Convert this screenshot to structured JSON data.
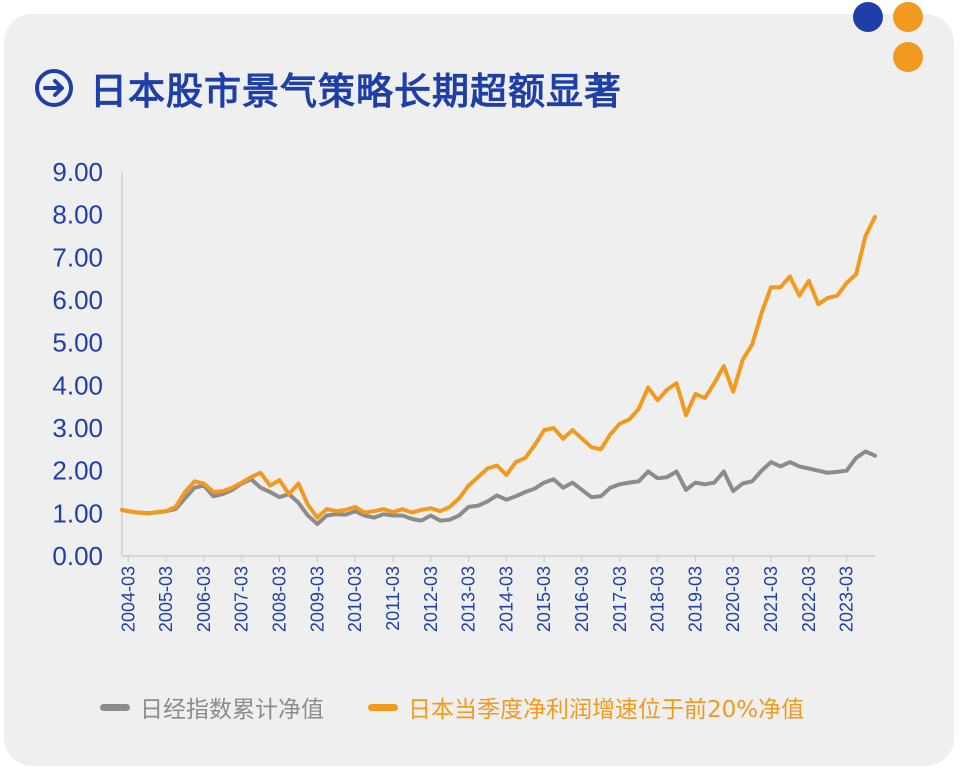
{
  "title": "日本股市景气策略长期超额显著",
  "icons": {
    "title_icon": "arrow-right-circle-icon"
  },
  "colors": {
    "accent_blue": "#1f3fa8",
    "dot_blue": "#1f3fa8",
    "dot_orange": "#f29a1f",
    "series_gray": "#8c8c8c",
    "series_orange": "#f29a1f"
  },
  "chart_data": {
    "type": "line",
    "title": "日本股市景气策略长期超额显著",
    "xlabel": "",
    "ylabel": "",
    "ylim": [
      0,
      9
    ],
    "yticks": [
      "0.00",
      "1.00",
      "2.00",
      "3.00",
      "4.00",
      "5.00",
      "6.00",
      "7.00",
      "8.00",
      "9.00"
    ],
    "xticks": [
      "2004-03",
      "2005-03",
      "2006-03",
      "2007-03",
      "2008-03",
      "2009-03",
      "2010-03",
      "2011-03",
      "2012-03",
      "2013-03",
      "2014-03",
      "2015-03",
      "2016-03",
      "2017-03",
      "2018-03",
      "2019-03",
      "2020-03",
      "2021-03",
      "2022-03",
      "2023-03"
    ],
    "grid": false,
    "legend_position": "bottom",
    "series": [
      {
        "name": "日经指数累计净值",
        "color": "#8c8c8c",
        "points": [
          [
            "2004-01",
            1.08
          ],
          [
            "2004-03",
            1.05
          ],
          [
            "2004-06",
            1.02
          ],
          [
            "2004-09",
            1.0
          ],
          [
            "2004-12",
            1.02
          ],
          [
            "2005-03",
            1.05
          ],
          [
            "2005-06",
            1.1
          ],
          [
            "2005-09",
            1.35
          ],
          [
            "2005-12",
            1.6
          ],
          [
            "2006-03",
            1.65
          ],
          [
            "2006-06",
            1.4
          ],
          [
            "2006-09",
            1.45
          ],
          [
            "2006-12",
            1.55
          ],
          [
            "2007-03",
            1.7
          ],
          [
            "2007-06",
            1.8
          ],
          [
            "2007-09",
            1.6
          ],
          [
            "2007-12",
            1.5
          ],
          [
            "2008-03",
            1.38
          ],
          [
            "2008-06",
            1.45
          ],
          [
            "2008-09",
            1.25
          ],
          [
            "2008-12",
            0.95
          ],
          [
            "2009-03",
            0.75
          ],
          [
            "2009-06",
            0.95
          ],
          [
            "2009-09",
            0.98
          ],
          [
            "2009-12",
            0.97
          ],
          [
            "2010-03",
            1.05
          ],
          [
            "2010-06",
            0.95
          ],
          [
            "2010-09",
            0.9
          ],
          [
            "2010-12",
            0.98
          ],
          [
            "2011-03",
            0.95
          ],
          [
            "2011-06",
            0.95
          ],
          [
            "2011-09",
            0.87
          ],
          [
            "2011-12",
            0.83
          ],
          [
            "2012-03",
            0.95
          ],
          [
            "2012-06",
            0.83
          ],
          [
            "2012-09",
            0.85
          ],
          [
            "2012-12",
            0.95
          ],
          [
            "2013-03",
            1.15
          ],
          [
            "2013-06",
            1.18
          ],
          [
            "2013-09",
            1.28
          ],
          [
            "2013-12",
            1.42
          ],
          [
            "2014-03",
            1.32
          ],
          [
            "2014-06",
            1.4
          ],
          [
            "2014-09",
            1.5
          ],
          [
            "2014-12",
            1.58
          ],
          [
            "2015-03",
            1.72
          ],
          [
            "2015-06",
            1.8
          ],
          [
            "2015-09",
            1.6
          ],
          [
            "2015-12",
            1.72
          ],
          [
            "2016-03",
            1.55
          ],
          [
            "2016-06",
            1.38
          ],
          [
            "2016-09",
            1.4
          ],
          [
            "2016-12",
            1.6
          ],
          [
            "2017-03",
            1.68
          ],
          [
            "2017-06",
            1.72
          ],
          [
            "2017-09",
            1.75
          ],
          [
            "2017-12",
            1.98
          ],
          [
            "2018-03",
            1.82
          ],
          [
            "2018-06",
            1.85
          ],
          [
            "2018-09",
            1.98
          ],
          [
            "2018-12",
            1.55
          ],
          [
            "2019-03",
            1.72
          ],
          [
            "2019-06",
            1.68
          ],
          [
            "2019-09",
            1.72
          ],
          [
            "2019-12",
            1.98
          ],
          [
            "2020-03",
            1.52
          ],
          [
            "2020-06",
            1.7
          ],
          [
            "2020-09",
            1.75
          ],
          [
            "2020-12",
            2.0
          ],
          [
            "2021-03",
            2.2
          ],
          [
            "2021-06",
            2.1
          ],
          [
            "2021-09",
            2.2
          ],
          [
            "2021-12",
            2.1
          ],
          [
            "2022-03",
            2.05
          ],
          [
            "2022-06",
            2.0
          ],
          [
            "2022-09",
            1.95
          ],
          [
            "2022-12",
            1.97
          ],
          [
            "2023-03",
            2.0
          ],
          [
            "2023-06",
            2.3
          ],
          [
            "2023-09",
            2.45
          ],
          [
            "2023-12",
            2.35
          ]
        ]
      },
      {
        "name": "日本当季度净利润增速位于前20%净值",
        "color": "#f29a1f",
        "points": [
          [
            "2004-01",
            1.08
          ],
          [
            "2004-03",
            1.05
          ],
          [
            "2004-06",
            1.02
          ],
          [
            "2004-09",
            1.0
          ],
          [
            "2004-12",
            1.03
          ],
          [
            "2005-03",
            1.05
          ],
          [
            "2005-06",
            1.15
          ],
          [
            "2005-09",
            1.5
          ],
          [
            "2005-12",
            1.75
          ],
          [
            "2006-03",
            1.7
          ],
          [
            "2006-06",
            1.5
          ],
          [
            "2006-09",
            1.52
          ],
          [
            "2006-12",
            1.6
          ],
          [
            "2007-03",
            1.72
          ],
          [
            "2007-06",
            1.85
          ],
          [
            "2007-09",
            1.95
          ],
          [
            "2007-12",
            1.65
          ],
          [
            "2008-03",
            1.78
          ],
          [
            "2008-06",
            1.45
          ],
          [
            "2008-09",
            1.7
          ],
          [
            "2008-12",
            1.2
          ],
          [
            "2009-03",
            0.9
          ],
          [
            "2009-06",
            1.1
          ],
          [
            "2009-09",
            1.05
          ],
          [
            "2009-12",
            1.08
          ],
          [
            "2010-03",
            1.15
          ],
          [
            "2010-06",
            1.02
          ],
          [
            "2010-09",
            1.05
          ],
          [
            "2010-12",
            1.1
          ],
          [
            "2011-03",
            1.03
          ],
          [
            "2011-06",
            1.1
          ],
          [
            "2011-09",
            1.02
          ],
          [
            "2011-12",
            1.08
          ],
          [
            "2012-03",
            1.12
          ],
          [
            "2012-06",
            1.05
          ],
          [
            "2012-09",
            1.15
          ],
          [
            "2012-12",
            1.35
          ],
          [
            "2013-03",
            1.65
          ],
          [
            "2013-06",
            1.85
          ],
          [
            "2013-09",
            2.05
          ],
          [
            "2013-12",
            2.12
          ],
          [
            "2014-03",
            1.9
          ],
          [
            "2014-06",
            2.2
          ],
          [
            "2014-09",
            2.3
          ],
          [
            "2014-12",
            2.6
          ],
          [
            "2015-03",
            2.95
          ],
          [
            "2015-06",
            3.0
          ],
          [
            "2015-09",
            2.75
          ],
          [
            "2015-12",
            2.95
          ],
          [
            "2016-03",
            2.75
          ],
          [
            "2016-06",
            2.55
          ],
          [
            "2016-09",
            2.5
          ],
          [
            "2016-12",
            2.85
          ],
          [
            "2017-03",
            3.1
          ],
          [
            "2017-06",
            3.2
          ],
          [
            "2017-09",
            3.45
          ],
          [
            "2017-12",
            3.95
          ],
          [
            "2018-03",
            3.65
          ],
          [
            "2018-06",
            3.9
          ],
          [
            "2018-09",
            4.05
          ],
          [
            "2018-12",
            3.3
          ],
          [
            "2019-03",
            3.8
          ],
          [
            "2019-06",
            3.7
          ],
          [
            "2019-09",
            4.05
          ],
          [
            "2019-12",
            4.45
          ],
          [
            "2020-03",
            3.85
          ],
          [
            "2020-06",
            4.6
          ],
          [
            "2020-09",
            4.95
          ],
          [
            "2020-12",
            5.7
          ],
          [
            "2021-03",
            6.3
          ],
          [
            "2021-06",
            6.3
          ],
          [
            "2021-09",
            6.55
          ],
          [
            "2021-12",
            6.1
          ],
          [
            "2022-03",
            6.45
          ],
          [
            "2022-06",
            5.9
          ],
          [
            "2022-09",
            6.05
          ],
          [
            "2022-12",
            6.1
          ],
          [
            "2023-03",
            6.4
          ],
          [
            "2023-06",
            6.6
          ],
          [
            "2023-09",
            7.5
          ],
          [
            "2023-12",
            7.95
          ]
        ]
      }
    ]
  }
}
